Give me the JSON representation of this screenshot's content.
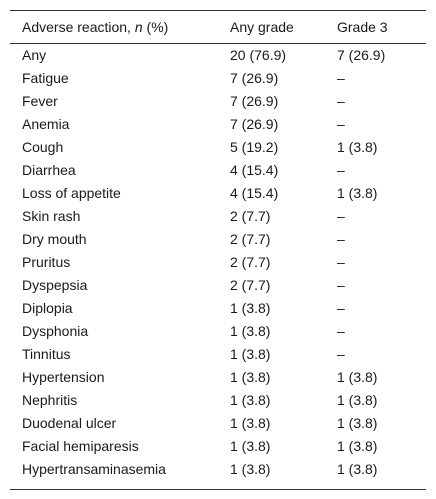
{
  "table": {
    "header": [
      {
        "prefix": "Adverse reaction, ",
        "italic": "n",
        "suffix": " (%)"
      },
      "Any grade",
      "Grade 3"
    ],
    "rows": [
      [
        "Any",
        "20 (76.9)",
        "7 (26.9)"
      ],
      [
        "Fatigue",
        "7 (26.9)",
        "–"
      ],
      [
        "Fever",
        "7 (26.9)",
        "–"
      ],
      [
        "Anemia",
        "7 (26.9)",
        "–"
      ],
      [
        "Cough",
        "5 (19.2)",
        "1 (3.8)"
      ],
      [
        "Diarrhea",
        "4 (15.4)",
        "–"
      ],
      [
        "Loss of appetite",
        "4 (15.4)",
        "1 (3.8)"
      ],
      [
        "Skin rash",
        "2 (7.7)",
        "–"
      ],
      [
        "Dry mouth",
        "2 (7.7)",
        "–"
      ],
      [
        "Pruritus",
        "2 (7.7)",
        "–"
      ],
      [
        "Dyspepsia",
        "2 (7.7)",
        "–"
      ],
      [
        "Diplopia",
        "1 (3.8)",
        "–"
      ],
      [
        "Dysphonia",
        "1 (3.8)",
        "–"
      ],
      [
        "Tinnitus",
        "1 (3.8)",
        "–"
      ],
      [
        "Hypertension",
        "1 (3.8)",
        "1 (3.8)"
      ],
      [
        "Nephritis",
        "1 (3.8)",
        "1 (3.8)"
      ],
      [
        "Duodenal ulcer",
        "1 (3.8)",
        "1 (3.8)"
      ],
      [
        "Facial hemiparesis",
        "1 (3.8)",
        "1 (3.8)"
      ],
      [
        "Hypertransaminasemia",
        "1 (3.8)",
        "1 (3.8)"
      ]
    ]
  }
}
